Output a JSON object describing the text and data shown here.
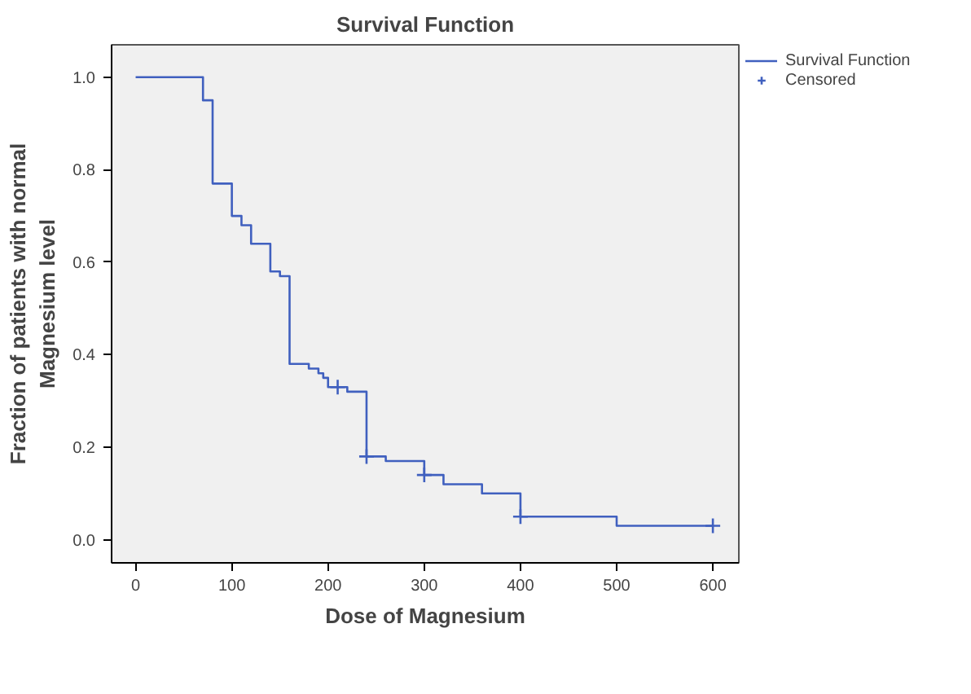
{
  "chart_data": {
    "type": "step",
    "title": "Survival Function",
    "xlabel": "Dose of Magnesium",
    "ylabel": "Fraction of patients with normal Magnesium level",
    "series": [
      {
        "name": "Survival Function",
        "color": "#4060bf",
        "x": [
          0,
          70,
          80,
          100,
          110,
          120,
          140,
          150,
          160,
          180,
          190,
          195,
          200,
          220,
          240,
          260,
          300,
          320,
          360,
          400,
          500,
          600
        ],
        "values": [
          1.0,
          0.95,
          0.77,
          0.7,
          0.68,
          0.64,
          0.58,
          0.57,
          0.38,
          0.37,
          0.36,
          0.35,
          0.33,
          0.32,
          0.18,
          0.17,
          0.14,
          0.12,
          0.1,
          0.05,
          0.03,
          0.03
        ]
      },
      {
        "name": "Censored",
        "type": "scatter",
        "marker": "cross",
        "color": "#4060bf",
        "x": [
          210,
          240,
          300,
          400,
          600
        ],
        "values": [
          0.33,
          0.18,
          0.14,
          0.05,
          0.03
        ]
      }
    ],
    "xlim": [
      -25,
      627
    ],
    "ylim": [
      -0.05,
      1.07
    ],
    "xticks": [
      0,
      100,
      200,
      300,
      400,
      500,
      600
    ],
    "yticks": [
      {
        "value": 0,
        "label": "0.0"
      },
      {
        "value": 0.2,
        "label": "0.2"
      },
      {
        "value": 0.4,
        "label": "0.4"
      },
      {
        "value": 0.6,
        "label": "0.6"
      },
      {
        "value": 0.8,
        "label": "0.8"
      },
      {
        "value": 1.0,
        "label": "1.0"
      }
    ],
    "grid": false,
    "legend": "top right"
  }
}
